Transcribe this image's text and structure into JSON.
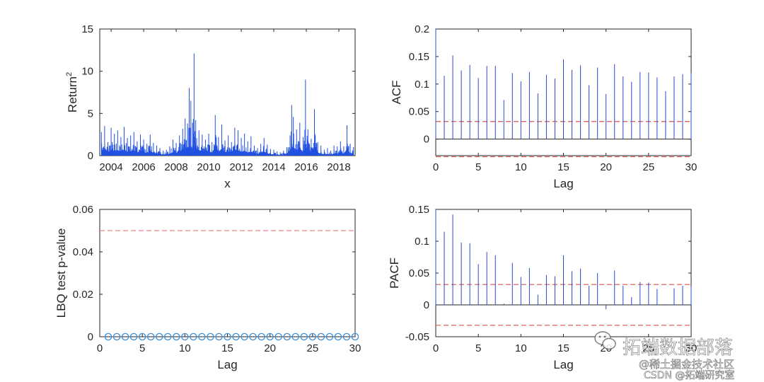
{
  "chart_data": [
    {
      "id": "returns",
      "type": "line",
      "title": "",
      "xlabel": "x",
      "ylabel": "Return",
      "ylabel_superscript": "2",
      "xlim": [
        2003.3,
        2019.0
      ],
      "ylim": [
        0,
        15
      ],
      "xticks": [
        2004,
        2006,
        2008,
        2010,
        2012,
        2014,
        2016,
        2018
      ],
      "yticks": [
        0,
        5,
        10,
        15
      ],
      "series": [
        {
          "name": "squared returns",
          "color": "#1f4fe0",
          "values": [
            [
              2003.4,
              2.8
            ],
            [
              2003.6,
              3.5
            ],
            [
              2003.8,
              1.6
            ],
            [
              2004.0,
              3.3
            ],
            [
              2004.2,
              2.6
            ],
            [
              2004.4,
              3.0
            ],
            [
              2004.6,
              2.2
            ],
            [
              2004.8,
              3.4
            ],
            [
              2005.0,
              2.1
            ],
            [
              2005.2,
              2.4
            ],
            [
              2005.4,
              2.8
            ],
            [
              2005.6,
              1.7
            ],
            [
              2005.8,
              2.5
            ],
            [
              2006.0,
              1.9
            ],
            [
              2006.2,
              1.4
            ],
            [
              2006.4,
              2.5
            ],
            [
              2006.6,
              1.5
            ],
            [
              2006.8,
              1.2
            ],
            [
              2007.0,
              0.9
            ],
            [
              2007.2,
              0.6
            ],
            [
              2007.4,
              0.7
            ],
            [
              2007.6,
              1.1
            ],
            [
              2007.8,
              1.9
            ],
            [
              2008.0,
              1.5
            ],
            [
              2008.2,
              2.4
            ],
            [
              2008.4,
              3.2
            ],
            [
              2008.55,
              4.4
            ],
            [
              2008.7,
              3.8
            ],
            [
              2008.8,
              8.0
            ],
            [
              2008.9,
              6.5
            ],
            [
              2009.0,
              3.9
            ],
            [
              2009.1,
              12.1
            ],
            [
              2009.2,
              4.2
            ],
            [
              2009.4,
              3.0
            ],
            [
              2009.6,
              2.5
            ],
            [
              2009.8,
              1.9
            ],
            [
              2010.0,
              2.6
            ],
            [
              2010.2,
              1.6
            ],
            [
              2010.4,
              4.8
            ],
            [
              2010.6,
              2.2
            ],
            [
              2010.8,
              3.7
            ],
            [
              2011.0,
              1.8
            ],
            [
              2011.2,
              2.4
            ],
            [
              2011.4,
              1.6
            ],
            [
              2011.6,
              3.3
            ],
            [
              2011.8,
              3.0
            ],
            [
              2012.0,
              2.1
            ],
            [
              2012.2,
              2.6
            ],
            [
              2012.4,
              1.7
            ],
            [
              2012.6,
              2.3
            ],
            [
              2012.8,
              1.2
            ],
            [
              2013.0,
              0.9
            ],
            [
              2013.2,
              1.4
            ],
            [
              2013.4,
              2.1
            ],
            [
              2013.6,
              1.3
            ],
            [
              2013.8,
              0.8
            ],
            [
              2014.0,
              0.7
            ],
            [
              2014.2,
              0.5
            ],
            [
              2014.4,
              0.4
            ],
            [
              2014.6,
              0.6
            ],
            [
              2014.8,
              1.0
            ],
            [
              2015.0,
              2.4
            ],
            [
              2015.1,
              6.0
            ],
            [
              2015.2,
              4.6
            ],
            [
              2015.4,
              3.1
            ],
            [
              2015.6,
              3.9
            ],
            [
              2015.8,
              2.2
            ],
            [
              2015.95,
              9.0
            ],
            [
              2016.1,
              3.1
            ],
            [
              2016.3,
              2.0
            ],
            [
              2016.5,
              5.5
            ],
            [
              2016.7,
              1.6
            ],
            [
              2016.9,
              1.2
            ],
            [
              2017.1,
              0.7
            ],
            [
              2017.3,
              0.9
            ],
            [
              2017.5,
              0.6
            ],
            [
              2017.7,
              1.2
            ],
            [
              2017.9,
              1.1
            ],
            [
              2018.1,
              1.7
            ],
            [
              2018.3,
              1.1
            ],
            [
              2018.5,
              3.6
            ],
            [
              2018.7,
              1.4
            ],
            [
              2018.9,
              1.0
            ]
          ]
        }
      ]
    },
    {
      "id": "acf",
      "type": "bar",
      "title": "",
      "xlabel": "Lag",
      "ylabel": "ACF",
      "xlim": [
        0,
        30
      ],
      "ylim": [
        -0.03,
        0.2
      ],
      "xticks": [
        0,
        5,
        10,
        15,
        20,
        25,
        30
      ],
      "yticks": [
        0,
        0.05,
        0.1,
        0.15,
        0.2
      ],
      "ytick_labels": [
        "0",
        "0.05",
        "0.1",
        "0.15",
        "0.2"
      ],
      "x": [
        1,
        2,
        3,
        4,
        5,
        6,
        7,
        8,
        9,
        10,
        11,
        12,
        13,
        14,
        15,
        16,
        17,
        18,
        19,
        20,
        21,
        22,
        23,
        24,
        25,
        26,
        27,
        28,
        29,
        30
      ],
      "values": [
        0.115,
        0.152,
        0.125,
        0.135,
        0.111,
        0.133,
        0.133,
        0.071,
        0.12,
        0.105,
        0.122,
        0.083,
        0.117,
        0.11,
        0.145,
        0.126,
        0.134,
        0.098,
        0.13,
        0.082,
        0.136,
        0.114,
        0.104,
        0.122,
        0.121,
        0.112,
        0.087,
        0.114,
        0.118,
        0.12
      ],
      "bounds": [
        0.032,
        -0.032
      ],
      "colors": {
        "stem": "#2c49d4",
        "bound": "#d9534f"
      }
    },
    {
      "id": "lbq",
      "type": "scatter",
      "title": "",
      "xlabel": "Lag",
      "ylabel": "LBQ test p-value",
      "xlim": [
        0,
        30
      ],
      "ylim": [
        0,
        0.06
      ],
      "xticks": [
        0,
        5,
        10,
        15,
        20,
        25,
        30
      ],
      "yticks": [
        0,
        0.02,
        0.04,
        0.06
      ],
      "ytick_labels": [
        "0",
        "0.02",
        "0.04",
        "0.06"
      ],
      "x": [
        1,
        2,
        3,
        4,
        5,
        6,
        7,
        8,
        9,
        10,
        11,
        12,
        13,
        14,
        15,
        16,
        17,
        18,
        19,
        20,
        21,
        22,
        23,
        24,
        25,
        26,
        27,
        28,
        29,
        30
      ],
      "values": [
        0,
        0,
        0,
        0,
        0,
        0,
        0,
        0,
        0,
        0,
        0,
        0,
        0,
        0,
        0,
        0,
        0,
        0,
        0,
        0,
        0,
        0,
        0,
        0,
        0,
        0,
        0,
        0,
        0,
        0
      ],
      "threshold": 0.05,
      "colors": {
        "marker": "#3d8fd6",
        "threshold": "#e8868a"
      }
    },
    {
      "id": "pacf",
      "type": "bar",
      "title": "",
      "xlabel": "Lag",
      "ylabel": "PACF",
      "xlim": [
        0,
        30
      ],
      "ylim": [
        -0.05,
        0.15
      ],
      "xticks": [
        0,
        5,
        10,
        15,
        20,
        25,
        30
      ],
      "yticks": [
        -0.05,
        0,
        0.05,
        0.1,
        0.15
      ],
      "ytick_labels": [
        "-0.05",
        "0",
        "0.05",
        "0.1",
        "0.15"
      ],
      "x": [
        1,
        2,
        3,
        4,
        5,
        6,
        7,
        8,
        9,
        10,
        11,
        12,
        13,
        14,
        15,
        16,
        17,
        18,
        19,
        20,
        21,
        22,
        23,
        24,
        25,
        26,
        27,
        28,
        29,
        30
      ],
      "values": [
        0.115,
        0.142,
        0.098,
        0.097,
        0.064,
        0.083,
        0.078,
        0.002,
        0.066,
        0.044,
        0.058,
        0.016,
        0.047,
        0.045,
        0.078,
        0.053,
        0.057,
        0.03,
        0.05,
        -0.007,
        0.054,
        0.03,
        0.012,
        0.036,
        0.035,
        0.025,
        0.001,
        0.026,
        0.03,
        0.029
      ],
      "bounds": [
        0.032,
        -0.032
      ],
      "colors": {
        "stem": "#2c49d4",
        "bound": "#d9534f"
      }
    }
  ],
  "watermark": {
    "title": "拓端数据部落",
    "line1": "@稀土掘金技术社区",
    "line2": "CSDN @拓端研究室",
    "icon": "wechat-icon"
  },
  "colors": {
    "axis": "#262626",
    "background": "#ffffff"
  }
}
